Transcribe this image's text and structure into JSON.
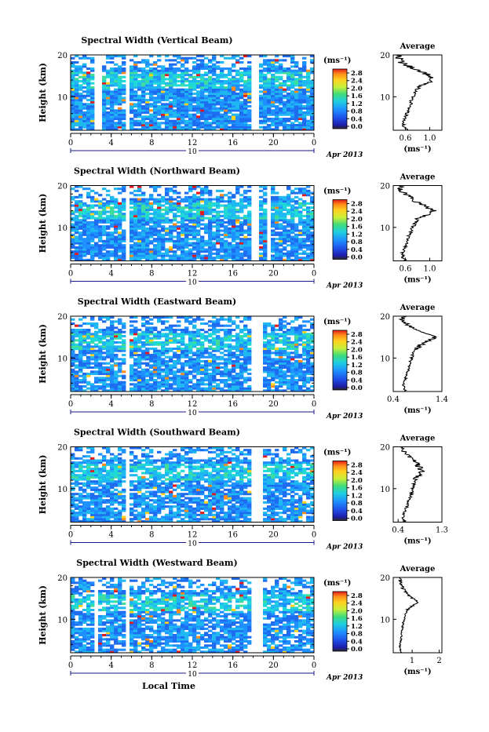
{
  "chart_data": [
    {
      "type": "heatmap",
      "title": "Spectral Width (Vertical Beam)",
      "ylabel": "Height (km)",
      "xlabel": "",
      "xticks": [
        "0",
        "4",
        "8",
        "12",
        "16",
        "20",
        "0"
      ],
      "yticks": [
        "10",
        "20"
      ],
      "date_label": "Apr 2013",
      "day_label": "10",
      "xlim": [
        0,
        24
      ],
      "ylim": [
        2,
        20
      ],
      "gaps": [
        [
          2.3,
          2.6
        ],
        [
          2.9,
          3.1
        ],
        [
          5.3,
          5.9
        ],
        [
          17.9,
          18.7
        ],
        [
          19.6,
          19.8
        ],
        [
          20.1,
          20.3
        ]
      ],
      "colorbar": {
        "unit": "(ms⁻¹)",
        "ticks": [
          "2.8",
          "2.4",
          "2.0",
          "1.6",
          "1.2",
          "0.8",
          "0.4",
          "0.0"
        ]
      },
      "average": {
        "title": "Average",
        "xlabel": "(ms⁻¹)",
        "xticks": [
          "0.6",
          "1.0"
        ],
        "yticks": [
          "10",
          "20"
        ],
        "xlim": [
          0.4,
          1.2
        ],
        "heights": [
          2,
          3,
          4,
          5,
          6,
          7,
          8,
          9,
          10,
          11,
          12,
          13,
          14,
          15,
          16,
          17,
          18,
          19,
          20
        ],
        "values": [
          0.62,
          0.58,
          0.55,
          0.6,
          0.62,
          0.65,
          0.68,
          0.7,
          0.72,
          0.75,
          0.8,
          0.9,
          1.05,
          1.0,
          0.85,
          0.7,
          0.55,
          0.5,
          0.5
        ]
      }
    },
    {
      "type": "heatmap",
      "title": "Spectral Width (Northward Beam)",
      "ylabel": "Height (km)",
      "xlabel": "",
      "xticks": [
        "0",
        "4",
        "8",
        "12",
        "16",
        "20",
        "0"
      ],
      "yticks": [
        "10",
        "20"
      ],
      "date_label": "Apr 2013",
      "day_label": "10",
      "xlim": [
        0,
        24
      ],
      "ylim": [
        2,
        20
      ],
      "gaps": [
        [
          2.6,
          2.8
        ],
        [
          3.0,
          3.2
        ],
        [
          5.4,
          5.8
        ],
        [
          18.0,
          18.7
        ],
        [
          19.5,
          19.7
        ],
        [
          20.0,
          20.2
        ]
      ],
      "colorbar": {
        "unit": "(ms⁻¹)",
        "ticks": [
          "2.8",
          "2.4",
          "2.0",
          "1.6",
          "1.2",
          "0.8",
          "0.4",
          "0.0"
        ]
      },
      "average": {
        "title": "Average",
        "xlabel": "(ms⁻¹)",
        "xticks": [
          "0.6",
          "1.0"
        ],
        "yticks": [
          "10",
          "20"
        ],
        "xlim": [
          0.4,
          1.2
        ],
        "heights": [
          2,
          3,
          4,
          5,
          6,
          7,
          8,
          9,
          10,
          11,
          12,
          13,
          14,
          15,
          16,
          17,
          18,
          19,
          20
        ],
        "values": [
          0.6,
          0.55,
          0.55,
          0.6,
          0.62,
          0.64,
          0.66,
          0.7,
          0.72,
          0.76,
          0.82,
          0.95,
          1.05,
          0.95,
          0.8,
          0.7,
          0.6,
          0.5,
          0.5
        ]
      }
    },
    {
      "type": "heatmap",
      "title": "Spectral Width (Eastward Beam)",
      "ylabel": "Height (km)",
      "xlabel": "",
      "xticks": [
        "0",
        "4",
        "8",
        "12",
        "16",
        "20",
        "0"
      ],
      "yticks": [
        "10",
        "20"
      ],
      "date_label": "Apr 2013",
      "day_label": "10",
      "xlim": [
        0,
        24
      ],
      "ylim": [
        2,
        20
      ],
      "gaps": [
        [
          2.6,
          2.8
        ],
        [
          3.0,
          3.2
        ],
        [
          5.4,
          5.8
        ],
        [
          18.0,
          18.8
        ],
        [
          19.6,
          19.8
        ],
        [
          20.1,
          20.3
        ]
      ],
      "colorbar": {
        "unit": "(ms⁻¹)",
        "ticks": [
          "2.8",
          "2.4",
          "2.0",
          "1.6",
          "1.2",
          "0.8",
          "0.4",
          "0.0"
        ]
      },
      "average": {
        "title": "Average",
        "xlabel": "(ms⁻¹)",
        "xticks": [
          "0.4",
          "1.4"
        ],
        "yticks": [
          "10",
          "20"
        ],
        "xlim": [
          0.4,
          1.4
        ],
        "heights": [
          2,
          3,
          4,
          5,
          6,
          7,
          8,
          9,
          10,
          11,
          12,
          13,
          14,
          15,
          16,
          17,
          18,
          19,
          20
        ],
        "values": [
          0.65,
          0.62,
          0.62,
          0.65,
          0.68,
          0.7,
          0.72,
          0.75,
          0.78,
          0.8,
          0.85,
          0.95,
          1.1,
          1.25,
          1.05,
          0.85,
          0.7,
          0.6,
          0.6
        ]
      }
    },
    {
      "type": "heatmap",
      "title": "Spectral Width (Southward Beam)",
      "ylabel": "Height (km)",
      "xlabel": "",
      "xticks": [
        "0",
        "4",
        "8",
        "12",
        "16",
        "20",
        "0"
      ],
      "yticks": [
        "10",
        "20"
      ],
      "date_label": "Apr 2013",
      "day_label": "10",
      "xlim": [
        0,
        24
      ],
      "ylim": [
        2,
        20
      ],
      "gaps": [
        [
          2.6,
          2.8
        ],
        [
          3.0,
          3.2
        ],
        [
          5.4,
          5.8
        ],
        [
          18.0,
          18.8
        ],
        [
          19.6,
          19.8
        ],
        [
          20.1,
          20.3
        ]
      ],
      "colorbar": {
        "unit": "(ms⁻¹)",
        "ticks": [
          "2.8",
          "2.4",
          "2.0",
          "1.6",
          "1.2",
          "0.8",
          "0.4",
          "0.0"
        ]
      },
      "average": {
        "title": "Average",
        "xlabel": "(ms⁻¹)",
        "xticks": [
          "0.4",
          "1.3"
        ],
        "yticks": [
          "10",
          "20"
        ],
        "xlim": [
          0.3,
          1.3
        ],
        "heights": [
          2,
          3,
          4,
          5,
          6,
          7,
          8,
          9,
          10,
          11,
          12,
          13,
          14,
          15,
          16,
          17,
          18,
          19,
          20
        ],
        "values": [
          0.55,
          0.5,
          0.5,
          0.55,
          0.6,
          0.62,
          0.65,
          0.68,
          0.7,
          0.72,
          0.75,
          0.82,
          0.9,
          0.85,
          0.78,
          0.7,
          0.6,
          0.5,
          0.5
        ]
      }
    },
    {
      "type": "heatmap",
      "title": "Spectral Width (Westward Beam)",
      "ylabel": "Height (km)",
      "xlabel": "Local Time",
      "xticks": [
        "0",
        "4",
        "8",
        "12",
        "16",
        "20",
        "0"
      ],
      "yticks": [
        "10",
        "20"
      ],
      "date_label": "Apr 2013",
      "day_label": "10",
      "xlim": [
        0,
        24
      ],
      "ylim": [
        2,
        20
      ],
      "gaps": [
        [
          2.4,
          2.7
        ],
        [
          3.0,
          3.2
        ],
        [
          5.3,
          5.9
        ],
        [
          18.0,
          18.8
        ],
        [
          19.6,
          19.8
        ],
        [
          20.1,
          20.3
        ]
      ],
      "colorbar": {
        "unit": "(ms⁻¹)",
        "ticks": [
          "2.8",
          "2.4",
          "2.0",
          "1.6",
          "1.2",
          "0.8",
          "0.4",
          "0.0"
        ]
      },
      "average": {
        "title": "Average",
        "xlabel": "(ms⁻¹)",
        "xticks": [
          "1",
          "2"
        ],
        "yticks": [
          "10",
          "20"
        ],
        "xlim": [
          0.3,
          2.1
        ],
        "heights": [
          2,
          3,
          4,
          5,
          6,
          7,
          8,
          9,
          10,
          11,
          12,
          13,
          14,
          15,
          16,
          17,
          18,
          19,
          20
        ],
        "values": [
          0.6,
          0.55,
          0.55,
          0.58,
          0.6,
          0.62,
          0.64,
          0.66,
          0.7,
          0.74,
          0.8,
          0.95,
          1.25,
          1.0,
          0.85,
          0.7,
          0.6,
          0.55,
          0.55
        ]
      }
    }
  ]
}
